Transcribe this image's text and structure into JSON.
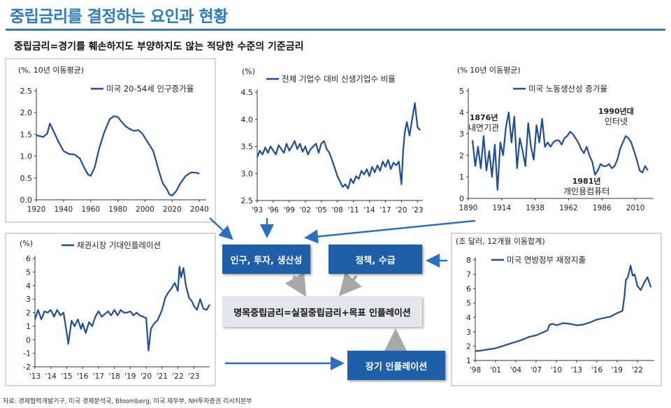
{
  "page": {
    "title": "중립금리를 결정하는 요인과 현황",
    "subtitle": "중립금리=경기를 훼손하지도 부양하지도 않는 적당한 수준의 기준금리",
    "source": "자료: 경제협력개발기구, 미국 경제분석국, Bloomberg, 미국 재무부, NH투자증권 리서치본부"
  },
  "flow": {
    "box_demo": "인구, 투자, 생산성",
    "box_policy": "정책, 수급",
    "box_nominal": "명목중립금리=실질중립금리+목표 인플레이션",
    "box_longinf": "장기 인플레이션"
  },
  "colors": {
    "title": "#2a7bbf",
    "series": "#1f4e96",
    "box_blue": "#1f5fa8",
    "box_grey": "#e3e6ea",
    "arrow_blue": "#2a6fc0",
    "arrow_grey": "#a8a8a8"
  },
  "chart_data": [
    {
      "id": "c1",
      "type": "line",
      "unit_label": "(%, 10년 이동평균)",
      "legend": "미국 20-54세 인구증가율",
      "ylim": [
        0,
        2.5
      ],
      "yticks": [
        "0.0",
        "0.5",
        "1.0",
        "1.5",
        "2.0",
        "2.5"
      ],
      "xlim": [
        1920,
        2045
      ],
      "xticks": [
        {
          "v": 1920,
          "t": "1920"
        },
        {
          "v": 1940,
          "t": "1940"
        },
        {
          "v": 1960,
          "t": "1960"
        },
        {
          "v": 1980,
          "t": "1980"
        },
        {
          "v": 2000,
          "t": "2000"
        },
        {
          "v": 2020,
          "t": "2020"
        },
        {
          "v": 2040,
          "t": "2040"
        }
      ],
      "x": [
        1920,
        1925,
        1928,
        1930,
        1933,
        1936,
        1940,
        1944,
        1948,
        1952,
        1955,
        1958,
        1960,
        1963,
        1966,
        1970,
        1974,
        1977,
        1980,
        1983,
        1986,
        1989,
        1992,
        1995,
        1998,
        2002,
        2006,
        2010,
        2013,
        2016,
        2018,
        2020,
        2023,
        2026,
        2030,
        2034,
        2038,
        2040
      ],
      "y": [
        1.48,
        1.44,
        1.52,
        1.75,
        1.55,
        1.35,
        1.12,
        1.05,
        1.04,
        0.95,
        0.75,
        0.58,
        0.55,
        0.75,
        1.15,
        1.55,
        1.85,
        1.92,
        1.9,
        1.78,
        1.68,
        1.62,
        1.58,
        1.6,
        1.52,
        1.32,
        1.12,
        0.68,
        0.38,
        0.25,
        0.12,
        0.1,
        0.2,
        0.38,
        0.55,
        0.63,
        0.62,
        0.6
      ]
    },
    {
      "id": "c2",
      "type": "line",
      "unit_label": "(%)",
      "legend": "전체 기업수 대비 신생기업수 비율",
      "ylim": [
        2.5,
        4.5
      ],
      "yticks": [
        "2.5",
        "3.0",
        "3.5",
        "4.0",
        "4.5"
      ],
      "xlim": [
        1993,
        2024
      ],
      "xticks": [
        {
          "v": 1993,
          "t": "'93"
        },
        {
          "v": 1996,
          "t": "'96"
        },
        {
          "v": 1999,
          "t": "'99"
        },
        {
          "v": 2002,
          "t": "'02"
        },
        {
          "v": 2005,
          "t": "'05"
        },
        {
          "v": 2008,
          "t": "'08"
        },
        {
          "v": 2011,
          "t": "'11"
        },
        {
          "v": 2014,
          "t": "'14"
        },
        {
          "v": 2017,
          "t": "'17"
        },
        {
          "v": 2020,
          "t": "'20"
        },
        {
          "v": 2023,
          "t": "'23"
        }
      ],
      "x": [
        1993,
        1993.5,
        1994,
        1994.5,
        1995,
        1995.5,
        1996,
        1996.5,
        1997,
        1997.5,
        1998,
        1998.5,
        1999,
        1999.5,
        2000,
        2000.5,
        2001,
        2001.5,
        2002,
        2002.5,
        2003,
        2003.5,
        2004,
        2004.5,
        2005,
        2005.5,
        2006,
        2006.5,
        2007,
        2007.5,
        2008,
        2008.5,
        2009,
        2009.5,
        2010,
        2010.5,
        2011,
        2011.5,
        2012,
        2012.5,
        2013,
        2013.5,
        2014,
        2014.5,
        2015,
        2015.5,
        2016,
        2016.5,
        2017,
        2017.5,
        2018,
        2018.5,
        2019,
        2019.5,
        2020,
        2020.3,
        2020.6,
        2021,
        2021.5,
        2022,
        2022.5,
        2023,
        2023.5
      ],
      "y": [
        3.3,
        3.42,
        3.35,
        3.48,
        3.38,
        3.5,
        3.42,
        3.35,
        3.52,
        3.45,
        3.38,
        3.55,
        3.42,
        3.5,
        3.6,
        3.45,
        3.55,
        3.4,
        3.5,
        3.35,
        3.45,
        3.5,
        3.55,
        3.38,
        3.55,
        3.6,
        3.45,
        3.38,
        3.25,
        3.1,
        2.95,
        2.85,
        2.75,
        2.8,
        2.72,
        2.9,
        2.82,
        2.95,
        2.9,
        3.05,
        2.98,
        3.08,
        2.95,
        3.12,
        3.02,
        3.15,
        3.05,
        3.22,
        3.12,
        3.25,
        3.08,
        3.2,
        3.15,
        3.22,
        2.8,
        3.4,
        3.75,
        3.95,
        3.7,
        4.0,
        4.3,
        3.85,
        3.8
      ]
    },
    {
      "id": "c3",
      "type": "line",
      "unit_label": "(% 10년 이동평균)",
      "legend": "미국 노동생산성 증가율",
      "ylim": [
        0,
        5
      ],
      "yticks": [
        "0",
        "1",
        "2",
        "3",
        "4",
        "5"
      ],
      "xlim": [
        1890,
        2023
      ],
      "xticks": [
        {
          "v": 1890,
          "t": "1890"
        },
        {
          "v": 1914,
          "t": "1914"
        },
        {
          "v": 1938,
          "t": "1938"
        },
        {
          "v": 1962,
          "t": "1962"
        },
        {
          "v": 1986,
          "t": "1986"
        },
        {
          "v": 2010,
          "t": "2010"
        }
      ],
      "x": [
        1893,
        1895,
        1897,
        1899,
        1901,
        1903,
        1905,
        1907,
        1909,
        1911,
        1913,
        1915,
        1917,
        1919,
        1921,
        1923,
        1925,
        1927,
        1929,
        1931,
        1933,
        1935,
        1937,
        1939,
        1941,
        1943,
        1945,
        1947,
        1949,
        1951,
        1953,
        1955,
        1957,
        1959,
        1961,
        1963,
        1965,
        1967,
        1969,
        1971,
        1973,
        1975,
        1977,
        1979,
        1981,
        1983,
        1985,
        1987,
        1989,
        1991,
        1993,
        1995,
        1997,
        1999,
        2001,
        2003,
        2005,
        2007,
        2009,
        2011,
        2013,
        2015,
        2017,
        2019
      ],
      "y": [
        2.7,
        1.5,
        2.4,
        1.4,
        2.9,
        1.3,
        2.2,
        1.0,
        2.5,
        0.4,
        2.6,
        2.0,
        3.3,
        4.0,
        2.6,
        3.8,
        1.4,
        2.8,
        2.2,
        1.5,
        3.5,
        2.4,
        1.8,
        3.4,
        2.6,
        3.7,
        2.4,
        2.6,
        2.4,
        2.6,
        2.7,
        2.7,
        2.5,
        2.8,
        2.9,
        3.1,
        3.0,
        2.8,
        2.6,
        2.3,
        2.1,
        2.4,
        2.0,
        1.7,
        1.1,
        1.3,
        1.6,
        1.5,
        1.5,
        1.6,
        1.4,
        1.5,
        1.8,
        2.3,
        2.6,
        2.9,
        2.8,
        2.6,
        2.2,
        1.8,
        1.3,
        1.2,
        1.5,
        1.3
      ]
    },
    {
      "id": "c4",
      "type": "line",
      "unit_label": "(%)",
      "legend": "채권시장 기대인플레이션",
      "ylim": [
        -2,
        6
      ],
      "yticks": [
        "-2",
        "-1",
        "0",
        "1",
        "2",
        "3",
        "4",
        "5",
        "6"
      ],
      "xlim": [
        2013,
        2024
      ],
      "xticks": [
        {
          "v": 2013,
          "t": "'13"
        },
        {
          "v": 2014,
          "t": "'14"
        },
        {
          "v": 2015,
          "t": "'15"
        },
        {
          "v": 2016,
          "t": "'16"
        },
        {
          "v": 2017,
          "t": "'17"
        },
        {
          "v": 2018,
          "t": "'18"
        },
        {
          "v": 2019,
          "t": "'19"
        },
        {
          "v": 2020,
          "t": "'20"
        },
        {
          "v": 2021,
          "t": "'21"
        },
        {
          "v": 2022,
          "t": "'22"
        },
        {
          "v": 2023,
          "t": "'23"
        }
      ],
      "x": [
        2013,
        2013.2,
        2013.4,
        2013.6,
        2013.8,
        2014,
        2014.2,
        2014.4,
        2014.6,
        2014.8,
        2015,
        2015.1,
        2015.3,
        2015.5,
        2015.7,
        2015.9,
        2016,
        2016.2,
        2016.4,
        2016.6,
        2016.8,
        2017,
        2017.2,
        2017.4,
        2017.6,
        2017.8,
        2018,
        2018.2,
        2018.4,
        2018.6,
        2018.8,
        2019,
        2019.2,
        2019.4,
        2019.6,
        2019.8,
        2020,
        2020.15,
        2020.3,
        2020.5,
        2020.7,
        2020.9,
        2021,
        2021.2,
        2021.4,
        2021.6,
        2021.8,
        2022,
        2022.1,
        2022.2,
        2022.35,
        2022.5,
        2022.7,
        2022.9,
        2023,
        2023.2,
        2023.4,
        2023.6,
        2023.8,
        2024
      ],
      "y": [
        1.5,
        2.2,
        1.5,
        2.1,
        2.0,
        2.2,
        1.7,
        2.2,
        1.8,
        2.0,
        0.5,
        -0.3,
        1.4,
        1.0,
        1.5,
        0.8,
        1.2,
        0.5,
        1.3,
        1.0,
        1.7,
        2.1,
        1.7,
        1.9,
        2.1,
        1.8,
        2.2,
        1.8,
        2.2,
        2.0,
        2.0,
        2.1,
        1.8,
        2.0,
        1.8,
        1.7,
        1.6,
        -0.8,
        0.8,
        1.2,
        1.4,
        1.9,
        2.2,
        3.1,
        3.5,
        3.8,
        4.2,
        3.6,
        5.4,
        4.6,
        5.3,
        4.0,
        3.1,
        2.8,
        2.5,
        2.2,
        3.0,
        2.3,
        2.2,
        2.6
      ]
    },
    {
      "id": "c5",
      "type": "line",
      "unit_label": "(조 달러, 12개월 이동합계)",
      "legend": "미국 연방정부 재정지출",
      "ylim": [
        1,
        8
      ],
      "yticks": [
        "1",
        "2",
        "3",
        "4",
        "5",
        "6",
        "7",
        "8"
      ],
      "xlim": [
        1998,
        2024.5
      ],
      "xticks": [
        {
          "v": 1998,
          "t": "'98"
        },
        {
          "v": 2001,
          "t": "'01"
        },
        {
          "v": 2004,
          "t": "'04"
        },
        {
          "v": 2007,
          "t": "'07"
        },
        {
          "v": 2010,
          "t": "'10"
        },
        {
          "v": 2013,
          "t": "'13"
        },
        {
          "v": 2016,
          "t": "'16"
        },
        {
          "v": 2019,
          "t": "'19"
        },
        {
          "v": 2022,
          "t": "'22"
        }
      ],
      "x": [
        1998,
        1999,
        2000,
        2001,
        2002,
        2003,
        2004,
        2005,
        2006,
        2007,
        2008,
        2008.7,
        2009,
        2009.5,
        2010,
        2011,
        2012,
        2013,
        2014,
        2015,
        2016,
        2017,
        2018,
        2019,
        2019.8,
        2020.1,
        2020.3,
        2020.6,
        2021,
        2021.3,
        2021.6,
        2022,
        2022.5,
        2023,
        2023.5,
        2024
      ],
      "y": [
        1.65,
        1.7,
        1.78,
        1.85,
        2.0,
        2.15,
        2.3,
        2.45,
        2.65,
        2.75,
        2.95,
        3.1,
        3.5,
        3.55,
        3.45,
        3.6,
        3.55,
        3.45,
        3.5,
        3.65,
        3.85,
        3.95,
        4.05,
        4.3,
        4.45,
        5.5,
        6.6,
        6.8,
        7.6,
        6.9,
        7.0,
        6.2,
        5.9,
        6.4,
        6.8,
        6.1
      ]
    }
  ],
  "annotations": {
    "c3_a1_line1": "1876년",
    "c3_a1_line2": "내연기관",
    "c3_a2_line1": "1990년대",
    "c3_a2_line2": "인터넷",
    "c3_a3_line1": "1981년",
    "c3_a3_line2": "개인용컴퓨터"
  }
}
